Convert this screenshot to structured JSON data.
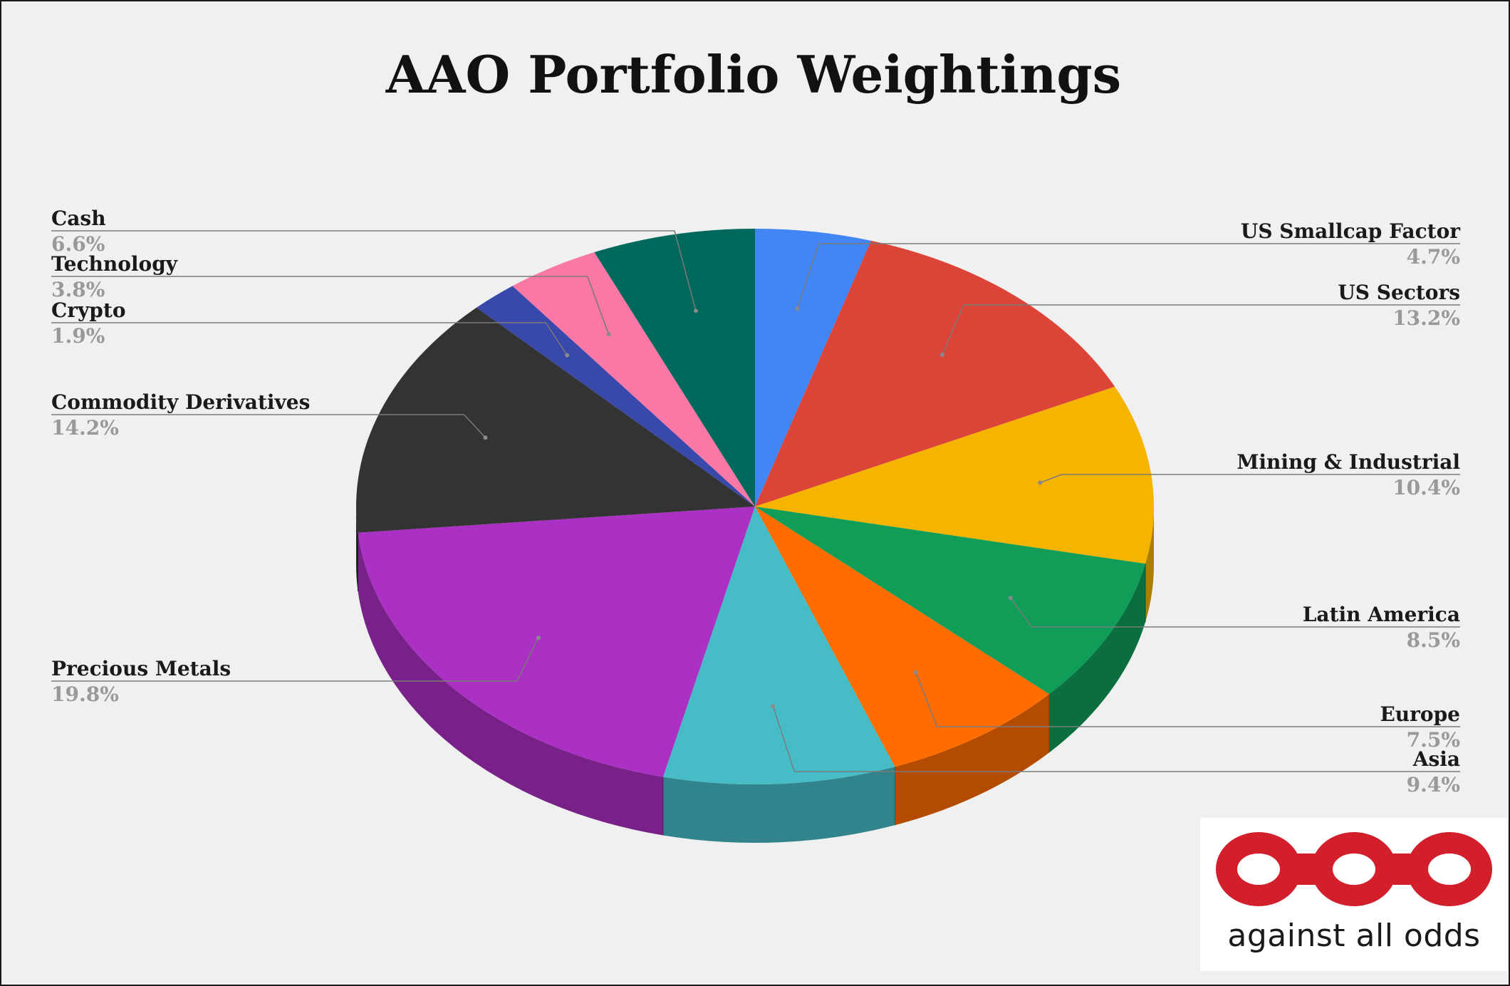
{
  "chart_data": {
    "type": "pie",
    "title": "AAO Portfolio Weightings",
    "start_angle_deg": 0,
    "direction": "clockwise",
    "slices": [
      {
        "label": "US Smallcap Factor",
        "value": 4.7,
        "display": "4.7%",
        "color": "#4285f4"
      },
      {
        "label": "US Sectors",
        "value": 13.2,
        "display": "13.2%",
        "color": "#db4437"
      },
      {
        "label": "Mining & Industrial",
        "value": 10.4,
        "display": "10.4%",
        "color": "#f4b400"
      },
      {
        "label": "Latin America",
        "value": 8.5,
        "display": "8.5%",
        "color": "#0f9d58"
      },
      {
        "label": "Europe",
        "value": 7.5,
        "display": "7.5%",
        "color": "#ff6d01"
      },
      {
        "label": "Asia",
        "value": 9.4,
        "display": "9.4%",
        "color": "#46bdc6"
      },
      {
        "label": "Precious Metals",
        "value": 19.8,
        "display": "19.8%",
        "color": "#ab30c4"
      },
      {
        "label": "Commodity Derivatives",
        "value": 14.2,
        "display": "14.2%",
        "color": "#333333"
      },
      {
        "label": "Crypto",
        "value": 1.9,
        "display": "1.9%",
        "color": "#3949ab"
      },
      {
        "label": "Technology",
        "value": 3.8,
        "display": "3.8%",
        "color": "#f978a6"
      },
      {
        "label": "Cash",
        "value": 6.6,
        "display": "6.6%",
        "color": "#00695c"
      }
    ],
    "style": "3d",
    "legend": "none (leader-line labels)"
  },
  "logo": {
    "caption": "against all odds",
    "mark_color": "#d21f2b"
  }
}
